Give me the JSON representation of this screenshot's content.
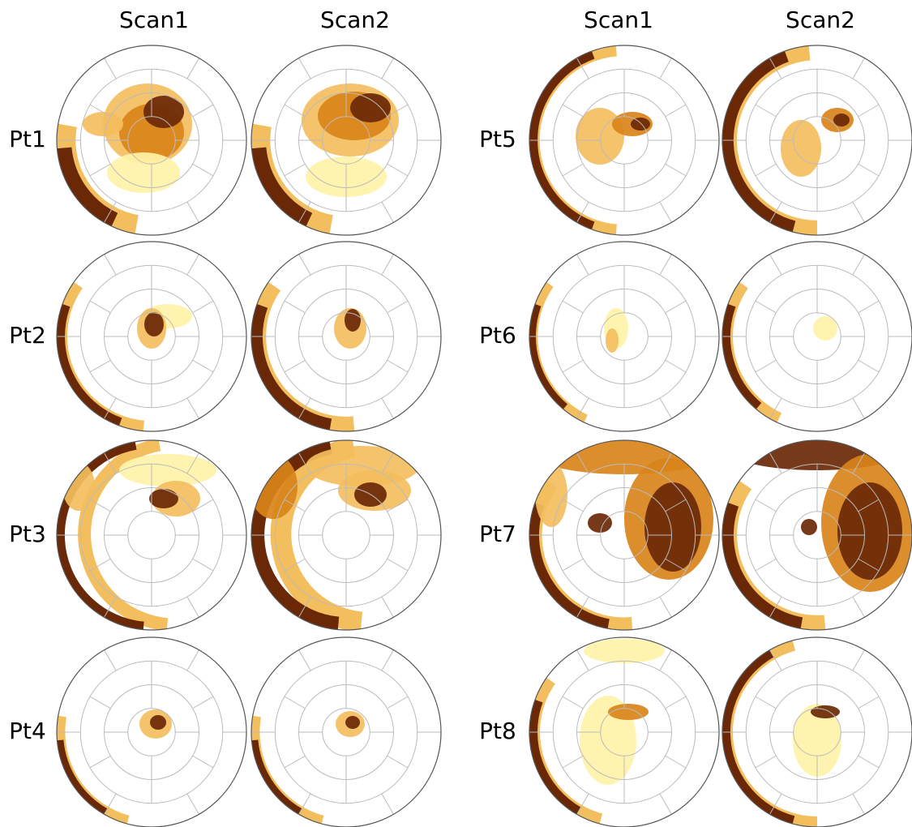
{
  "column_headers": [
    "Scan1",
    "Scan2",
    "Scan1",
    "Scan2"
  ],
  "row_labels": [
    "Pt1",
    "Pt2",
    "Pt3",
    "Pt4",
    "Pt5",
    "Pt6",
    "Pt7",
    "Pt8"
  ]
}
